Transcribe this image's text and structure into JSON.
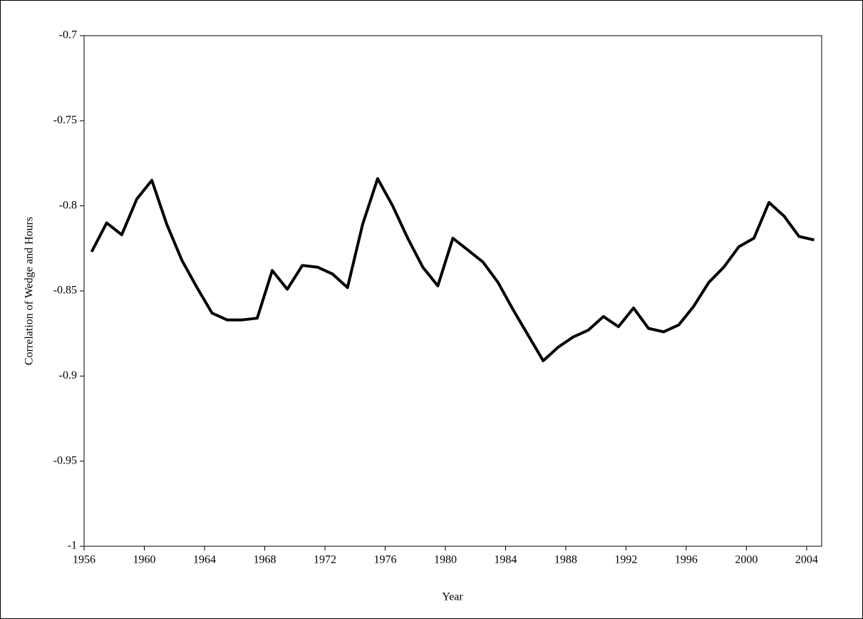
{
  "chart_data": {
    "type": "line",
    "x_label": "Year",
    "y_label": "Correlation of Wedge and Hours",
    "x": [
      1956.5,
      1957.5,
      1958.5,
      1959.5,
      1960.5,
      1961.5,
      1962.5,
      1963.5,
      1964.5,
      1965.5,
      1966.5,
      1967.5,
      1968.5,
      1969.5,
      1970.5,
      1971.5,
      1972.5,
      1973.5,
      1974.5,
      1975.5,
      1976.5,
      1977.5,
      1978.5,
      1979.5,
      1980.5,
      1981.5,
      1982.5,
      1983.5,
      1984.5,
      1985.5,
      1986.5,
      1987.5,
      1988.5,
      1989.5,
      1990.5,
      1991.5,
      1992.5,
      1993.5,
      1994.5,
      1995.5,
      1996.5,
      1997.5,
      1998.5,
      1999.5,
      2000.5,
      2001.5,
      2002.5,
      2003.5,
      2004.5
    ],
    "series": [
      {
        "color": "#000000",
        "values": [
          -0.827,
          -0.81,
          -0.817,
          -0.796,
          -0.785,
          -0.811,
          -0.832,
          -0.848,
          -0.863,
          -0.867,
          -0.867,
          -0.866,
          -0.838,
          -0.849,
          -0.835,
          -0.836,
          -0.84,
          -0.848,
          -0.811,
          -0.784,
          -0.8,
          -0.819,
          -0.836,
          -0.847,
          -0.819,
          -0.826,
          -0.833,
          -0.845,
          -0.861,
          -0.876,
          -0.891,
          -0.883,
          -0.877,
          -0.873,
          -0.865,
          -0.871,
          -0.86,
          -0.872,
          -0.874,
          -0.87,
          -0.859,
          -0.845,
          -0.836,
          -0.824,
          -0.819,
          -0.798,
          -0.806,
          -0.818,
          -0.82
        ]
      }
    ],
    "xlim": [
      1956,
      2005
    ],
    "xticks": [
      1956,
      1960,
      1964,
      1968,
      1972,
      1976,
      1980,
      1984,
      1988,
      1992,
      1996,
      2000,
      2004
    ],
    "ylim": [
      -1,
      -0.7
    ],
    "yticks": [
      -1,
      -0.95,
      -0.9,
      -0.85,
      -0.8,
      -0.75,
      -0.7
    ],
    "grid": false
  }
}
